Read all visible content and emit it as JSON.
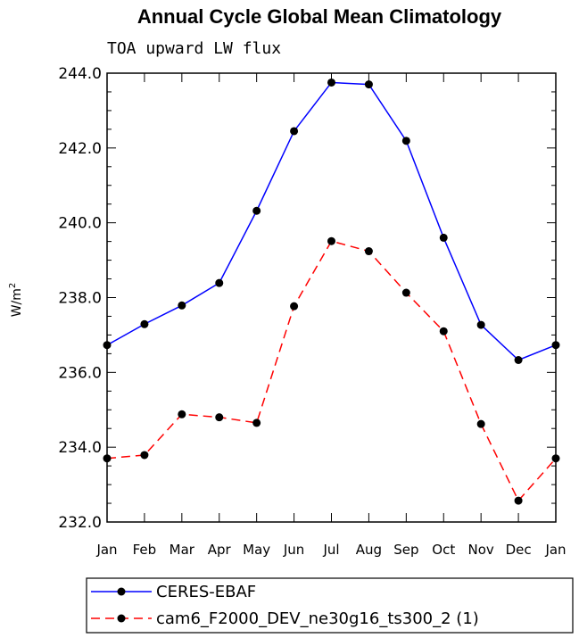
{
  "chart_data": {
    "type": "line",
    "title": "Annual Cycle Global Mean Climatology",
    "subtitle": "TOA upward LW flux",
    "ylabel": "W/m",
    "ylabel_sup": "2",
    "xlabel": "",
    "categories": [
      "Jan",
      "Feb",
      "Mar",
      "Apr",
      "May",
      "Jun",
      "Jul",
      "Aug",
      "Sep",
      "Oct",
      "Nov",
      "Dec",
      "Jan"
    ],
    "ylim": [
      232.0,
      244.0
    ],
    "yticks": [
      "232.0",
      "234.0",
      "236.0",
      "238.0",
      "240.0",
      "242.0",
      "244.0"
    ],
    "ytick_values": [
      232.0,
      234.0,
      236.0,
      238.0,
      240.0,
      242.0,
      244.0
    ],
    "grid": false,
    "legend_position": "bottom",
    "series": [
      {
        "name": "CERES-EBAF",
        "color": "#0000ff",
        "dash": "solid",
        "values": [
          236.73,
          237.29,
          237.79,
          238.39,
          240.32,
          242.45,
          243.75,
          243.7,
          242.19,
          239.6,
          237.27,
          236.33,
          236.73
        ]
      },
      {
        "name": "cam6_F2000_DEV_ne30g16_ts300_2 (1)",
        "color": "#ff0000",
        "dash": "dashed",
        "values": [
          233.7,
          233.79,
          234.88,
          234.8,
          234.65,
          237.77,
          239.51,
          239.24,
          238.13,
          237.1,
          234.62,
          232.57,
          233.7
        ]
      }
    ]
  }
}
